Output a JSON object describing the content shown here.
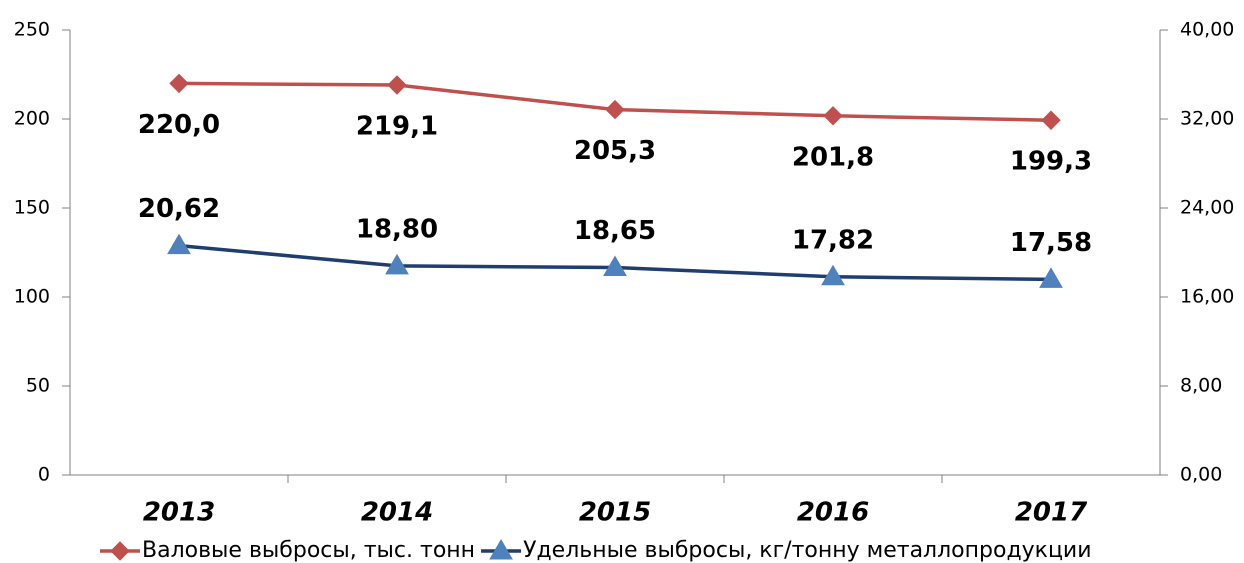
{
  "chart_data": {
    "type": "line",
    "categories": [
      "2013",
      "2014",
      "2015",
      "2016",
      "2017"
    ],
    "series": [
      {
        "name": "Валовые выбросы, тыс. тонн",
        "color": "#c0504d",
        "marker_color": "#c0504d",
        "marker": "diamond",
        "values": [
          220.0,
          219.1,
          205.3,
          201.8,
          199.3
        ],
        "value_labels": [
          "220,0",
          "219,1",
          "205,3",
          "201,8",
          "199,3"
        ]
      },
      {
        "name": "Удельные выбросы, кг/тонну металлопродукции",
        "color": "#1f3d6e",
        "marker_color": "#4f81bd",
        "marker": "triangle",
        "axis": "y2",
        "values": [
          20.62,
          18.8,
          18.65,
          17.82,
          17.58
        ],
        "value_labels": [
          "20,62",
          "18,80",
          "18,65",
          "17,82",
          "17,58"
        ]
      }
    ],
    "ylim": [
      0,
      250
    ],
    "yticks": [
      0,
      50,
      100,
      150,
      200,
      250
    ],
    "y2lim": [
      0,
      40
    ],
    "y2ticks": [
      {
        "value": 0,
        "label": "0,00"
      },
      {
        "value": 8,
        "label": "8,00"
      },
      {
        "value": 16,
        "label": "16,00"
      },
      {
        "value": 24,
        "label": "24,00"
      },
      {
        "value": 32,
        "label": "32,00"
      },
      {
        "value": 40,
        "label": "40,00"
      }
    ],
    "grid": false,
    "legend": "bottom"
  }
}
